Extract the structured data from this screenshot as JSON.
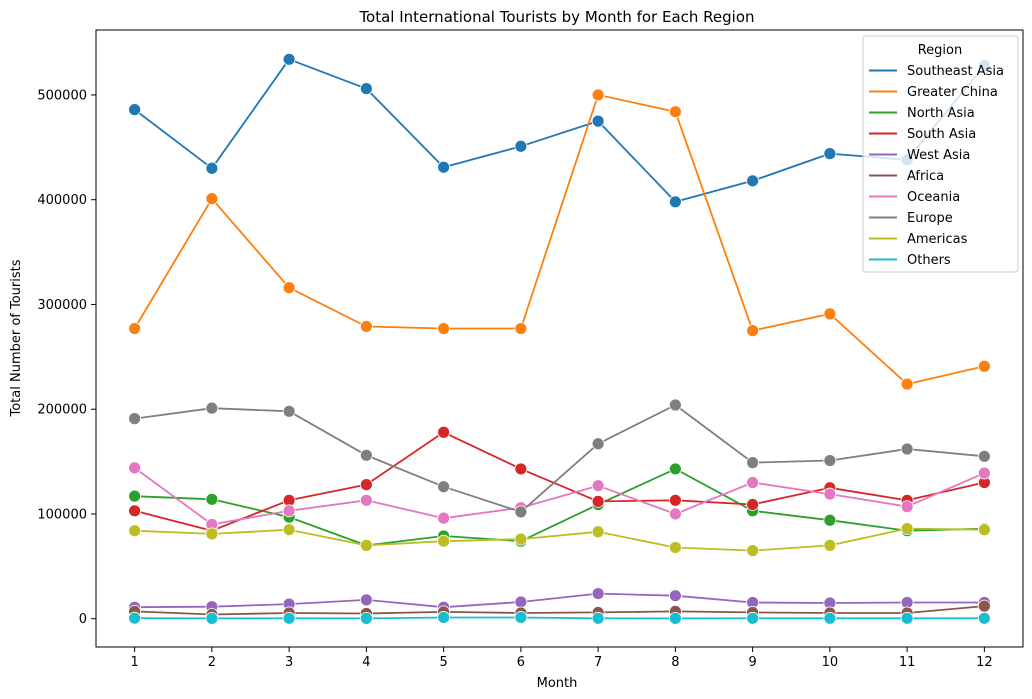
{
  "chart_data": {
    "type": "line",
    "title": "Total International Tourists by Month for Each Region",
    "xlabel": "Month",
    "ylabel": "Total Number of Tourists",
    "x": [
      1,
      2,
      3,
      4,
      5,
      6,
      7,
      8,
      9,
      10,
      11,
      12
    ],
    "xlim": [
      0.5,
      12.5
    ],
    "ylim": [
      -27000,
      562000
    ],
    "yticks": [
      0,
      100000,
      200000,
      300000,
      400000,
      500000
    ],
    "grid": false,
    "legend": {
      "title": "Region",
      "placement": "top-right"
    },
    "series": [
      {
        "name": "Southeast Asia",
        "color": "#1f77b4",
        "values": [
          486000,
          430000,
          534000,
          506000,
          431000,
          451000,
          475000,
          398000,
          418000,
          444000,
          438000,
          528000
        ]
      },
      {
        "name": "Greater China",
        "color": "#ff7f0e",
        "values": [
          277000,
          401000,
          316000,
          279000,
          277000,
          277000,
          500000,
          484000,
          275000,
          291000,
          224000,
          241000
        ]
      },
      {
        "name": "North Asia",
        "color": "#2ca02c",
        "values": [
          117000,
          114000,
          97000,
          70000,
          79000,
          74000,
          109000,
          143000,
          103000,
          94000,
          84000,
          86000
        ]
      },
      {
        "name": "South Asia",
        "color": "#d62728",
        "values": [
          103000,
          84000,
          113000,
          128000,
          178000,
          143000,
          112000,
          113000,
          109000,
          125000,
          113000,
          130000
        ]
      },
      {
        "name": "West Asia",
        "color": "#9467bd",
        "values": [
          11000,
          11500,
          14000,
          18000,
          11000,
          16000,
          24000,
          22000,
          15500,
          15000,
          15500,
          15500
        ]
      },
      {
        "name": "Africa",
        "color": "#8c564b",
        "values": [
          7000,
          4000,
          5500,
          5000,
          6500,
          5500,
          6000,
          7000,
          6000,
          5500,
          5500,
          12000
        ]
      },
      {
        "name": "Oceania",
        "color": "#e377c2",
        "values": [
          144000,
          90000,
          103000,
          113000,
          96000,
          106000,
          127000,
          100000,
          130000,
          119000,
          107000,
          139000
        ]
      },
      {
        "name": "Europe",
        "color": "#7f7f7f",
        "values": [
          191000,
          201000,
          198000,
          156000,
          126000,
          102000,
          167000,
          204000,
          149000,
          151000,
          162000,
          155000
        ]
      },
      {
        "name": "Americas",
        "color": "#bcbd22",
        "values": [
          84000,
          81000,
          85000,
          70000,
          74000,
          76000,
          83000,
          68000,
          65000,
          70000,
          86000,
          85000
        ]
      },
      {
        "name": "Others",
        "color": "#17becf",
        "values": [
          500,
          300,
          400,
          300,
          1200,
          1200,
          400,
          300,
          400,
          400,
          400,
          400
        ]
      }
    ]
  }
}
